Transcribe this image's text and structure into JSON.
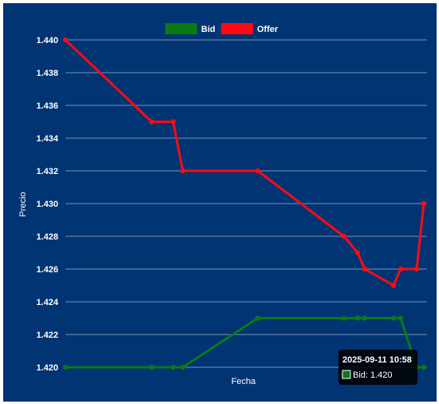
{
  "chart_data": {
    "type": "line",
    "xlabel": "Fecha",
    "ylabel": "Precio",
    "ylim": [
      1.42,
      1.44
    ],
    "y_ticks": [
      "1.420",
      "1.422",
      "1.424",
      "1.426",
      "1.428",
      "1.430",
      "1.432",
      "1.434",
      "1.436",
      "1.438",
      "1.440"
    ],
    "grid": true,
    "legend_position": "top-center",
    "series": [
      {
        "name": "Bid",
        "color": "#0a7a14",
        "values": [
          1.42,
          1.42,
          1.42,
          1.42,
          1.423,
          1.423,
          1.423,
          1.423,
          1.423,
          1.423,
          1.42,
          1.42
        ]
      },
      {
        "name": "Offer",
        "color": "#ff0a14",
        "values": [
          1.44,
          1.435,
          1.435,
          1.432,
          1.432,
          1.428,
          1.427,
          1.426,
          1.425,
          1.426,
          1.426,
          1.43
        ]
      }
    ],
    "tooltip": {
      "title": "2025-09-11 10:58",
      "body": "Bid: 1.420"
    }
  }
}
